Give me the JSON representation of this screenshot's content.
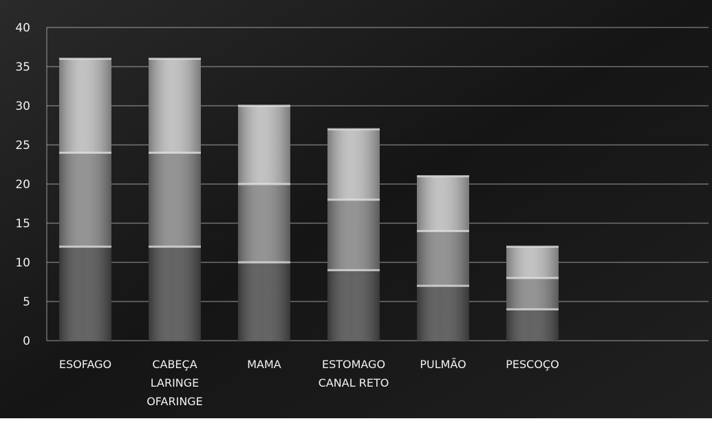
{
  "chart_data": {
    "type": "bar",
    "stacked": true,
    "title": "",
    "xlabel": "",
    "ylabel": "",
    "ylim": [
      0,
      40
    ],
    "yticks": [
      "0",
      "5",
      "10",
      "15",
      "20",
      "25",
      "30",
      "35",
      "40"
    ],
    "grid": true,
    "categories": [
      [
        "ESOFAGO"
      ],
      [
        "CABEÇA",
        "LARINGE",
        "OFARINGE"
      ],
      [
        "MAMA"
      ],
      [
        "ESTOMAGO",
        "CANAL RETO"
      ],
      [
        "PULMÃO"
      ],
      [
        "PESCOÇO"
      ]
    ],
    "totals": [
      36,
      36,
      30,
      27,
      21,
      12
    ],
    "segment_boundaries": [
      [
        12,
        24
      ],
      [
        12,
        24
      ],
      [
        10,
        20
      ],
      [
        9,
        18
      ],
      [
        7,
        14
      ],
      [
        4,
        8
      ]
    ],
    "colors": {
      "background": "#1b1b1b",
      "grid": "#d8d8d8",
      "text": "#f2f2f2",
      "bar_light": "#bdbdbd",
      "bar_mid": "#8a8a8a",
      "bar_dark": "#555555",
      "separator": "#e6e6e6"
    }
  }
}
